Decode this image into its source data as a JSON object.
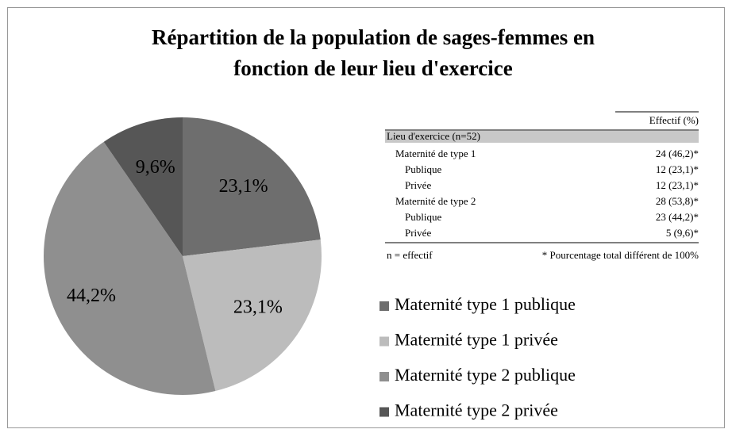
{
  "chart_data": {
    "type": "pie",
    "title": "Répartition de la population de sages-femmes en fonction de leur lieu d'exercice",
    "categories": [
      "Maternité type 1 publique",
      "Maternité type 1 privée",
      "Maternité type 2 publique",
      "Maternité type 2 privée"
    ],
    "values": [
      23.1,
      23.1,
      44.2,
      9.6
    ],
    "value_labels": [
      "23,1%",
      "23,1%",
      "44,2%",
      "9,6%"
    ],
    "colors": [
      "#6e6e6e",
      "#bcbcbc",
      "#8f8f8f",
      "#565656"
    ],
    "legend": "right"
  },
  "table": {
    "header": "Effectif (%)",
    "section": "Lieu d'exercice (n=52)",
    "rows": [
      [
        "Maternité de type 1",
        "24 (46,2)*"
      ],
      [
        "Publique",
        "12 (23,1)*"
      ],
      [
        "Privée",
        "12 (23,1)*"
      ],
      [
        "Maternité de type 2",
        "28 (53,8)*"
      ],
      [
        "Publique",
        "23 (44,2)*"
      ],
      [
        "Privée",
        "5 (9,6)*"
      ]
    ],
    "notes": [
      "n = effectif",
      "* Pourcentage total différent de 100%"
    ]
  }
}
